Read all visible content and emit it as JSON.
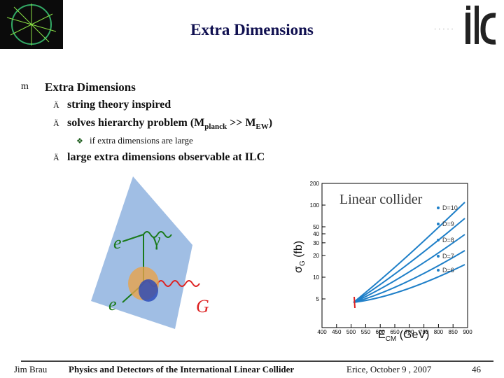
{
  "header": {
    "title": "Extra Dimensions"
  },
  "body": {
    "heading": "Extra Dimensions",
    "items": [
      {
        "text": "string theory inspired"
      },
      {
        "text_parts": [
          "solves hierarchy problem (M",
          "planck",
          " >> M",
          "EW",
          ")"
        ]
      },
      {
        "sub": "if extra dimensions are large"
      },
      {
        "text": "large extra dimensions observable at ILC"
      }
    ]
  },
  "diagram": {
    "labels": [
      "e",
      "γ",
      "e",
      "G"
    ]
  },
  "plot": {
    "title": "Linear collider",
    "y_label": [
      "σ",
      "G",
      "(fb)"
    ],
    "x_label": [
      "E",
      "CM",
      "(GeV)"
    ],
    "yticks": [
      200,
      100,
      50,
      40,
      30,
      20,
      10,
      5
    ],
    "xticks": [
      400,
      450,
      500,
      550,
      600,
      650,
      700,
      750,
      800,
      850,
      900
    ],
    "legend": [
      "D=10",
      "D=9",
      "D=8",
      "D=7",
      "D=6"
    ]
  },
  "footer": {
    "author": "Jim Brau",
    "talk": "Physics and Detectors of the International Linear Collider",
    "venue": "Erice, October 9 , 2007",
    "page": "46"
  }
}
